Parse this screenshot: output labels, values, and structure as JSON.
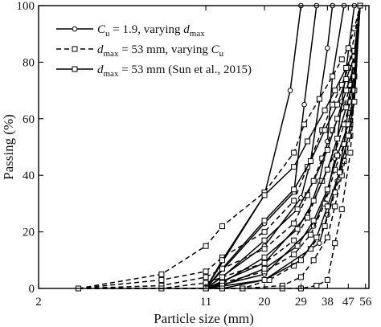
{
  "chart_data": {
    "type": "line",
    "xlabel": "Particle size (mm)",
    "ylabel": "Passing (%)",
    "xscale": "log",
    "xlim": [
      2,
      58
    ],
    "ylim": [
      0,
      100
    ],
    "xticks": [
      2,
      11,
      20,
      29,
      38,
      47,
      56
    ],
    "yticks": [
      0,
      20,
      40,
      60,
      80,
      100
    ],
    "grid": false,
    "legend_position": "top-left",
    "legend": [
      {
        "label_main": "C",
        "label_sub": "u",
        "label_rest": " = 1.9, varying ",
        "label_italic2": "d",
        "label_sub2": "max",
        "style": "solid",
        "marker": "circle"
      },
      {
        "label_main": "d",
        "label_sub": "max",
        "label_rest": " = 53 mm, varying ",
        "label_italic2": "C",
        "label_sub2": "u",
        "style": "dashed",
        "marker": "square"
      },
      {
        "label_main": "d",
        "label_sub": "max",
        "label_rest": " = 53 mm (Sun et al., 2015)",
        "label_italic2": "",
        "label_sub2": "",
        "style": "solid",
        "marker": "square"
      }
    ],
    "series": [
      {
        "style": "solid",
        "marker": "circle",
        "x": [
          11,
          20,
          26,
          29
        ],
        "y": [
          0,
          33,
          70,
          100
        ]
      },
      {
        "style": "solid",
        "marker": "circle",
        "x": [
          11,
          20,
          27,
          30,
          34
        ],
        "y": [
          0,
          23,
          34,
          65,
          100
        ]
      },
      {
        "style": "solid",
        "marker": "circle",
        "x": [
          11,
          20,
          29,
          32,
          38,
          40
        ],
        "y": [
          0,
          15,
          32,
          45,
          85,
          100
        ]
      },
      {
        "style": "solid",
        "marker": "circle",
        "x": [
          11,
          20,
          31,
          35,
          38,
          40,
          45
        ],
        "y": [
          0,
          9,
          26,
          38,
          52,
          75,
          100
        ]
      },
      {
        "style": "solid",
        "marker": "circle",
        "x": [
          11,
          20,
          33,
          38,
          41,
          44,
          50
        ],
        "y": [
          0,
          5,
          22,
          34,
          46,
          66,
          100
        ]
      },
      {
        "style": "solid",
        "marker": "circle",
        "x": [
          11,
          20,
          35,
          38,
          42,
          45,
          48,
          53
        ],
        "y": [
          0,
          3,
          16,
          26,
          38,
          51,
          70,
          100
        ]
      },
      {
        "style": "dashed",
        "marker": "square",
        "x": [
          3,
          7,
          11,
          13,
          20,
          27,
          30,
          35,
          40,
          44,
          47,
          50,
          53
        ],
        "y": [
          0,
          5,
          15,
          22,
          34,
          48,
          58,
          67,
          75,
          81,
          85,
          92,
          100
        ]
      },
      {
        "style": "dashed",
        "marker": "square",
        "x": [
          3,
          7,
          11,
          13,
          20,
          27,
          31,
          36,
          40,
          44,
          47,
          53
        ],
        "y": [
          0,
          3,
          6,
          11,
          20,
          31,
          43,
          56,
          65,
          72,
          78,
          100
        ]
      },
      {
        "style": "dashed",
        "marker": "square",
        "x": [
          3,
          7,
          11,
          13,
          20,
          27,
          31,
          36,
          40,
          45,
          48,
          53
        ],
        "y": [
          0,
          1,
          4,
          7,
          14,
          23,
          33,
          46,
          56,
          64,
          72,
          100
        ]
      },
      {
        "style": "dashed",
        "marker": "square",
        "x": [
          3,
          7,
          11,
          13,
          20,
          27,
          31,
          36,
          41,
          45,
          48,
          53
        ],
        "y": [
          0,
          0,
          2,
          4,
          9,
          17,
          25,
          38,
          48,
          58,
          66,
          100
        ]
      },
      {
        "style": "dashed",
        "marker": "square",
        "x": [
          3,
          7,
          11,
          13,
          20,
          27,
          32,
          37,
          41,
          45,
          48,
          53
        ],
        "y": [
          0,
          0,
          0,
          2,
          6,
          12,
          19,
          30,
          42,
          51,
          62,
          100
        ]
      },
      {
        "style": "dashed",
        "marker": "square",
        "x": [
          3,
          11,
          16,
          21,
          27,
          32,
          37,
          41,
          45,
          48,
          53
        ],
        "y": [
          0,
          0,
          0,
          3,
          8,
          14,
          22,
          34,
          45,
          58,
          100
        ]
      },
      {
        "style": "dashed",
        "marker": "square",
        "x": [
          3,
          16,
          24,
          29,
          33,
          38,
          41,
          44,
          48,
          53
        ],
        "y": [
          0,
          0,
          1,
          4,
          10,
          18,
          29,
          40,
          54,
          100
        ]
      },
      {
        "style": "dashed",
        "marker": "square",
        "x": [
          3,
          16,
          24,
          29,
          34,
          38,
          41,
          44,
          48,
          53
        ],
        "y": [
          0,
          0,
          0,
          0,
          1,
          3,
          16,
          28,
          48,
          100
        ]
      },
      {
        "style": "solid",
        "marker": "square",
        "x": [
          11,
          13,
          20,
          27,
          31,
          37,
          41,
          46,
          50,
          53
        ],
        "y": [
          0,
          10,
          33,
          43,
          52,
          63,
          70,
          78,
          84,
          100
        ]
      },
      {
        "style": "solid",
        "marker": "square",
        "x": [
          11,
          13,
          20,
          27,
          32,
          37,
          42,
          46,
          50,
          53
        ],
        "y": [
          0,
          7,
          24,
          35,
          45,
          56,
          65,
          74,
          82,
          100
        ]
      },
      {
        "style": "solid",
        "marker": "square",
        "x": [
          11,
          13,
          20,
          28,
          33,
          38,
          42,
          46,
          50,
          53
        ],
        "y": [
          0,
          4,
          17,
          28,
          38,
          49,
          60,
          70,
          79,
          100
        ]
      },
      {
        "style": "solid",
        "marker": "square",
        "x": [
          11,
          13,
          20,
          28,
          33,
          38,
          42,
          46,
          50,
          53
        ],
        "y": [
          0,
          2,
          11,
          21,
          31,
          42,
          53,
          64,
          75,
          100
        ]
      },
      {
        "style": "solid",
        "marker": "square",
        "x": [
          11,
          13,
          20,
          28,
          33,
          38,
          42,
          47,
          50,
          53
        ],
        "y": [
          0,
          1,
          7,
          15,
          24,
          35,
          47,
          58,
          70,
          100
        ]
      },
      {
        "style": "solid",
        "marker": "square",
        "x": [
          11,
          13,
          20,
          29,
          34,
          38,
          43,
          47,
          50,
          53
        ],
        "y": [
          0,
          0,
          3,
          10,
          18,
          29,
          41,
          54,
          66,
          100
        ]
      }
    ]
  }
}
